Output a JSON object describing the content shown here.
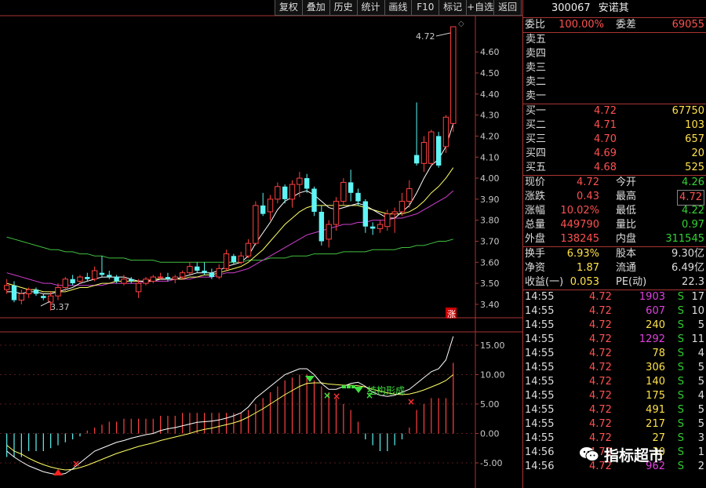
{
  "toolbar": {
    "items": [
      "复权",
      "叠加",
      "历史",
      "统计",
      "画线",
      "F10",
      "标记",
      "+自选",
      "返回"
    ]
  },
  "stock": {
    "code": "300067",
    "name": "安诺其"
  },
  "price_axis": [
    "4.60",
    "4.50",
    "4.40",
    "4.30",
    "4.20",
    "4.10",
    "4.00",
    "3.90",
    "3.80",
    "3.70",
    "3.60",
    "3.50",
    "3.40"
  ],
  "macd_axis": [
    "15.00",
    "10.00",
    "5.00",
    "0.00",
    "-5.00"
  ],
  "annotations": {
    "high": "4.72",
    "low": "3.37",
    "pattern": "结构形成",
    "zhang": "涨"
  },
  "colors": {
    "up": "#ff4040",
    "down": "#5ff5f5",
    "ma_white": "#ffffff",
    "ma_yellow": "#ffff66",
    "ma_magenta": "#d040d0",
    "ma_green": "#40c040"
  },
  "panel": {
    "webi": {
      "label": "委比",
      "value": "100.00%",
      "label2": "委差",
      "value2": "69055"
    },
    "sell": [
      {
        "label": "卖五"
      },
      {
        "label": "卖四"
      },
      {
        "label": "卖三"
      },
      {
        "label": "卖二"
      },
      {
        "label": "卖一"
      }
    ],
    "buy": [
      {
        "label": "买一",
        "price": "4.72",
        "vol": "67750"
      },
      {
        "label": "买二",
        "price": "4.71",
        "vol": "103"
      },
      {
        "label": "买三",
        "price": "4.70",
        "vol": "657"
      },
      {
        "label": "买四",
        "price": "4.69",
        "vol": "20"
      },
      {
        "label": "买五",
        "price": "4.68",
        "vol": "525"
      }
    ],
    "stats1": [
      {
        "l": "现价",
        "v": "4.72",
        "l2": "今开",
        "v2": "4.26",
        "c2": "grn"
      },
      {
        "l": "涨跌",
        "v": "0.43",
        "l2": "最高",
        "v2": "4.72",
        "c2": "red box"
      },
      {
        "l": "涨幅",
        "v": "10.02%",
        "l2": "最低",
        "v2": "4.22",
        "c2": "grn"
      },
      {
        "l": "总量",
        "v": "449790",
        "l2": "量比",
        "v2": "0.97",
        "c2": "grn"
      },
      {
        "l": "外盘",
        "v": "138245",
        "l2": "内盘",
        "v2": "311545",
        "c2": "grn"
      }
    ],
    "stats2": [
      {
        "l": "换手",
        "v": "6.93%",
        "l2": "股本",
        "v2": "9.30亿"
      },
      {
        "l": "净资",
        "v": "1.87",
        "l2": "流通",
        "v2": "6.49亿"
      },
      {
        "l": "收益(一)",
        "v": "0.053",
        "l2": "PE(动)",
        "v2": "22.3"
      }
    ],
    "ticks": [
      {
        "t": "14:55",
        "p": "4.72",
        "v": "1903",
        "vc": "mag",
        "s": "S",
        "n": "17"
      },
      {
        "t": "14:55",
        "p": "4.72",
        "v": "607",
        "vc": "mag",
        "s": "S",
        "n": "10"
      },
      {
        "t": "14:55",
        "p": "4.72",
        "v": "240",
        "vc": "ylw",
        "s": "S",
        "n": "5"
      },
      {
        "t": "14:55",
        "p": "4.72",
        "v": "1292",
        "vc": "mag",
        "s": "S",
        "n": "11"
      },
      {
        "t": "14:55",
        "p": "4.72",
        "v": "78",
        "vc": "ylw",
        "s": "S",
        "n": "4"
      },
      {
        "t": "14:55",
        "p": "4.72",
        "v": "306",
        "vc": "ylw",
        "s": "S",
        "n": "5"
      },
      {
        "t": "14:55",
        "p": "4.72",
        "v": "140",
        "vc": "ylw",
        "s": "S",
        "n": "5"
      },
      {
        "t": "14:55",
        "p": "4.72",
        "v": "175",
        "vc": "ylw",
        "s": "S",
        "n": "4"
      },
      {
        "t": "14:55",
        "p": "4.72",
        "v": "491",
        "vc": "ylw",
        "s": "S",
        "n": "5"
      },
      {
        "t": "14:55",
        "p": "4.72",
        "v": "217",
        "vc": "ylw",
        "s": "S",
        "n": "5"
      },
      {
        "t": "14:55",
        "p": "4.72",
        "v": "27",
        "vc": "ylw",
        "s": "S",
        "n": "3"
      },
      {
        "t": "14:56",
        "p": "4.72",
        "v": "30",
        "vc": "ylw",
        "s": "S",
        "n": "1"
      },
      {
        "t": "14:56",
        "p": "4.72",
        "v": "962",
        "vc": "mag",
        "s": "S",
        "n": "2"
      }
    ]
  },
  "watermark": {
    "text": "指标超市"
  },
  "chart_data": [
    {
      "type": "candlestick",
      "ylim": [
        3.34,
        4.75
      ],
      "yticks": [
        4.6,
        4.5,
        4.4,
        4.3,
        4.2,
        4.1,
        4.0,
        3.9,
        3.8,
        3.7,
        3.6,
        3.5,
        3.4
      ],
      "candles": [
        [
          3.47,
          3.52,
          3.45,
          3.49
        ],
        [
          3.49,
          3.51,
          3.41,
          3.42
        ],
        [
          3.42,
          3.47,
          3.4,
          3.45
        ],
        [
          3.45,
          3.48,
          3.43,
          3.47
        ],
        [
          3.47,
          3.48,
          3.44,
          3.45
        ],
        [
          3.44,
          3.45,
          3.42,
          3.43
        ],
        [
          3.41,
          3.46,
          3.37,
          3.44
        ],
        [
          3.44,
          3.5,
          3.42,
          3.48
        ],
        [
          3.48,
          3.53,
          3.46,
          3.52
        ],
        [
          3.52,
          3.54,
          3.49,
          3.5
        ],
        [
          3.51,
          3.54,
          3.5,
          3.53
        ],
        [
          3.53,
          3.55,
          3.51,
          3.52
        ],
        [
          3.52,
          3.58,
          3.51,
          3.56
        ],
        [
          3.55,
          3.63,
          3.53,
          3.54
        ],
        [
          3.54,
          3.56,
          3.52,
          3.53
        ],
        [
          3.53,
          3.54,
          3.5,
          3.51
        ],
        [
          3.5,
          3.54,
          3.49,
          3.52
        ],
        [
          3.52,
          3.53,
          3.5,
          3.51
        ],
        [
          3.46,
          3.52,
          3.43,
          3.5
        ],
        [
          3.5,
          3.53,
          3.49,
          3.52
        ],
        [
          3.51,
          3.54,
          3.5,
          3.53
        ],
        [
          3.53,
          3.55,
          3.52,
          3.53
        ],
        [
          3.53,
          3.55,
          3.51,
          3.52
        ],
        [
          3.52,
          3.54,
          3.5,
          3.53
        ],
        [
          3.53,
          3.56,
          3.52,
          3.55
        ],
        [
          3.55,
          3.6,
          3.54,
          3.58
        ],
        [
          3.58,
          3.6,
          3.55,
          3.56
        ],
        [
          3.56,
          3.6,
          3.54,
          3.55
        ],
        [
          3.55,
          3.57,
          3.52,
          3.53
        ],
        [
          3.53,
          3.59,
          3.52,
          3.57
        ],
        [
          3.57,
          3.66,
          3.56,
          3.64
        ],
        [
          3.63,
          3.64,
          3.59,
          3.6
        ],
        [
          3.6,
          3.65,
          3.59,
          3.63
        ],
        [
          3.63,
          3.71,
          3.62,
          3.69
        ],
        [
          3.69,
          3.89,
          3.68,
          3.87
        ],
        [
          3.87,
          3.93,
          3.82,
          3.83
        ],
        [
          3.84,
          3.92,
          3.8,
          3.9
        ],
        [
          3.9,
          3.98,
          3.88,
          3.96
        ],
        [
          3.96,
          3.97,
          3.88,
          3.9
        ],
        [
          3.9,
          3.99,
          3.86,
          3.97
        ],
        [
          3.97,
          4.03,
          3.91,
          4.0
        ],
        [
          4.0,
          4.02,
          3.93,
          3.95
        ],
        [
          3.95,
          3.96,
          3.82,
          3.84
        ],
        [
          3.84,
          3.87,
          3.68,
          3.7
        ],
        [
          3.71,
          3.8,
          3.67,
          3.78
        ],
        [
          3.78,
          3.91,
          3.75,
          3.89
        ],
        [
          3.89,
          4.0,
          3.87,
          3.98
        ],
        [
          3.98,
          4.04,
          3.89,
          3.93
        ],
        [
          3.93,
          3.95,
          3.87,
          3.89
        ],
        [
          3.89,
          3.9,
          3.74,
          3.77
        ],
        [
          3.77,
          3.79,
          3.73,
          3.76
        ],
        [
          3.76,
          3.8,
          3.74,
          3.78
        ],
        [
          3.77,
          3.85,
          3.75,
          3.83
        ],
        [
          3.83,
          3.86,
          3.74,
          3.84
        ],
        [
          3.84,
          3.93,
          3.82,
          3.89
        ],
        [
          3.89,
          3.99,
          3.86,
          3.95
        ],
        [
          4.11,
          4.36,
          4.06,
          4.07
        ],
        [
          4.07,
          4.2,
          4.03,
          4.17
        ],
        [
          4.07,
          4.23,
          4.06,
          4.22
        ],
        [
          4.2,
          4.22,
          4.05,
          4.06
        ],
        [
          4.15,
          4.3,
          4.12,
          4.29
        ],
        [
          4.26,
          4.72,
          4.22,
          4.72
        ]
      ],
      "ma_white": [
        3.46,
        3.46,
        3.45,
        3.46,
        3.46,
        3.45,
        3.45,
        3.46,
        3.47,
        3.48,
        3.5,
        3.51,
        3.52,
        3.53,
        3.53,
        3.53,
        3.53,
        3.52,
        3.51,
        3.51,
        3.51,
        3.52,
        3.52,
        3.52,
        3.53,
        3.54,
        3.55,
        3.55,
        3.55,
        3.56,
        3.58,
        3.59,
        3.6,
        3.63,
        3.69,
        3.74,
        3.79,
        3.85,
        3.89,
        3.91,
        3.93,
        3.94,
        3.92,
        3.89,
        3.86,
        3.85,
        3.86,
        3.87,
        3.88,
        3.87,
        3.85,
        3.83,
        3.81,
        3.81,
        3.84,
        3.87,
        3.93,
        4.0,
        4.06,
        4.09,
        4.15,
        4.26
      ],
      "ma_yellow": [
        3.5,
        3.49,
        3.48,
        3.47,
        3.47,
        3.46,
        3.46,
        3.46,
        3.46,
        3.47,
        3.48,
        3.48,
        3.49,
        3.5,
        3.5,
        3.51,
        3.51,
        3.51,
        3.51,
        3.51,
        3.52,
        3.52,
        3.52,
        3.52,
        3.52,
        3.53,
        3.53,
        3.54,
        3.54,
        3.55,
        3.56,
        3.57,
        3.58,
        3.6,
        3.63,
        3.66,
        3.7,
        3.74,
        3.78,
        3.81,
        3.84,
        3.86,
        3.87,
        3.87,
        3.87,
        3.87,
        3.87,
        3.87,
        3.87,
        3.86,
        3.85,
        3.84,
        3.83,
        3.83,
        3.83,
        3.84,
        3.86,
        3.89,
        3.93,
        3.96,
        4.0,
        4.05
      ],
      "ma_magenta": [
        3.55,
        3.54,
        3.53,
        3.52,
        3.51,
        3.5,
        3.5,
        3.49,
        3.49,
        3.49,
        3.49,
        3.49,
        3.49,
        3.49,
        3.5,
        3.5,
        3.5,
        3.5,
        3.5,
        3.51,
        3.51,
        3.51,
        3.51,
        3.52,
        3.52,
        3.52,
        3.53,
        3.53,
        3.53,
        3.54,
        3.55,
        3.55,
        3.56,
        3.57,
        3.59,
        3.61,
        3.63,
        3.65,
        3.67,
        3.69,
        3.71,
        3.73,
        3.74,
        3.75,
        3.76,
        3.77,
        3.78,
        3.78,
        3.79,
        3.79,
        3.8,
        3.8,
        3.8,
        3.81,
        3.81,
        3.82,
        3.83,
        3.85,
        3.87,
        3.89,
        3.91,
        3.94
      ],
      "ma_green": [
        3.72,
        3.71,
        3.7,
        3.69,
        3.68,
        3.67,
        3.66,
        3.66,
        3.65,
        3.65,
        3.64,
        3.64,
        3.63,
        3.63,
        3.62,
        3.62,
        3.62,
        3.61,
        3.61,
        3.61,
        3.61,
        3.6,
        3.6,
        3.6,
        3.6,
        3.6,
        3.6,
        3.6,
        3.6,
        3.6,
        3.6,
        3.6,
        3.6,
        3.61,
        3.61,
        3.61,
        3.62,
        3.62,
        3.62,
        3.63,
        3.63,
        3.63,
        3.64,
        3.64,
        3.64,
        3.64,
        3.65,
        3.65,
        3.65,
        3.65,
        3.66,
        3.66,
        3.66,
        3.66,
        3.67,
        3.67,
        3.68,
        3.68,
        3.69,
        3.7,
        3.7,
        3.71
      ]
    },
    {
      "type": "macd",
      "ylim": [
        -9,
        17
      ],
      "yticks": [
        15,
        10,
        5,
        0,
        -5
      ],
      "hist": [
        -4,
        -4,
        -4,
        -3,
        -3,
        -3,
        -2.5,
        -2,
        -1.5,
        -1,
        -0.5,
        0.5,
        1,
        1.5,
        2,
        2,
        2.5,
        2.5,
        2.5,
        2.5,
        2.5,
        3,
        3,
        3,
        3.5,
        3.5,
        3.5,
        3.5,
        3.5,
        3.5,
        3.5,
        3.5,
        3.5,
        4,
        5,
        6,
        7,
        8,
        9,
        9.5,
        10,
        10,
        9,
        8,
        7,
        6,
        5,
        4,
        2,
        -1,
        -2,
        -3,
        -3,
        -2,
        -1,
        1,
        4,
        5,
        6,
        6,
        6,
        12
      ],
      "dif": [
        -3,
        -4,
        -4.8,
        -5.5,
        -6,
        -6.5,
        -6.8,
        -7,
        -6.8,
        -6,
        -5,
        -4,
        -3,
        -2.5,
        -2,
        -1.5,
        -1.2,
        -0.8,
        -0.5,
        -0.2,
        0,
        0.5,
        0.8,
        1,
        1.3,
        1.6,
        1.9,
        2,
        2.1,
        2.3,
        2.6,
        3,
        3.5,
        4.5,
        6,
        7,
        8,
        9,
        10,
        10.5,
        11,
        11,
        10,
        8.5,
        7.5,
        7.5,
        8,
        8.5,
        8.7,
        8,
        7,
        6.5,
        6.3,
        6.5,
        7,
        7.5,
        8.5,
        9.5,
        10.5,
        11,
        12.5,
        16.5
      ],
      "dea": [
        -2,
        -3,
        -3.5,
        -4.2,
        -4.8,
        -5.3,
        -5.7,
        -6,
        -6.2,
        -6.1,
        -5.8,
        -5.4,
        -4.9,
        -4.4,
        -3.9,
        -3.4,
        -3,
        -2.6,
        -2.2,
        -1.9,
        -1.6,
        -1.2,
        -0.9,
        -0.6,
        -0.3,
        0,
        0.4,
        0.7,
        0.9,
        1.2,
        1.5,
        1.8,
        2.2,
        2.8,
        3.5,
        4.2,
        5,
        5.8,
        6.6,
        7.3,
        8,
        8.5,
        8.6,
        8.6,
        8.4,
        8.3,
        8.2,
        8.2,
        8.1,
        7.9,
        7.5,
        7.2,
        6.9,
        6.7,
        6.6,
        6.7,
        7,
        7.4,
        7.9,
        8.4,
        9,
        10
      ]
    }
  ]
}
